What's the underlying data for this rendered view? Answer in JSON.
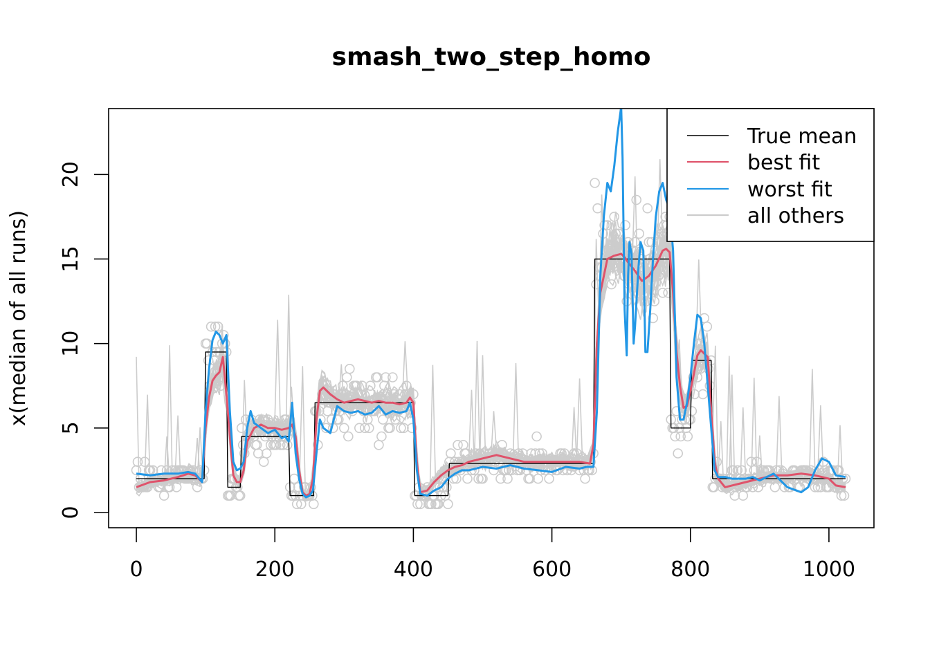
{
  "chart_data": {
    "type": "line",
    "title": "smash_two_step_homo",
    "xlabel": "",
    "ylabel": "x(median of all runs)",
    "xlim": [
      -40,
      1065
    ],
    "ylim": [
      -0.9,
      23.9
    ],
    "x_ticks": [
      0,
      200,
      400,
      600,
      800,
      1000
    ],
    "x_tick_labels": [
      "0",
      "200",
      "400",
      "600",
      "800",
      "1000"
    ],
    "y_ticks": [
      0,
      5,
      10,
      15,
      20
    ],
    "y_tick_labels": [
      "0",
      "5",
      "10",
      "15",
      "20"
    ],
    "legend_position": "top-right",
    "colors": {
      "true_mean": "#000000",
      "best_fit": "#DF536B",
      "worst_fit": "#2297E6",
      "all_others": "#CCCCCC",
      "points": "#CCCCCC"
    },
    "series": [
      {
        "name": "True mean",
        "key": "true_mean",
        "x": [
          0,
          98,
          100,
          130,
          132,
          150,
          152,
          220,
          222,
          232,
          234,
          256,
          258,
          400,
          402,
          450,
          452,
          660,
          662,
          770,
          772,
          800,
          802,
          830,
          832,
          1024
        ],
        "y": [
          2,
          2,
          9.5,
          9.5,
          1.5,
          1.5,
          4.5,
          4.5,
          1,
          1,
          1,
          1,
          6.5,
          6.5,
          1,
          1,
          2.9,
          2.9,
          15,
          15,
          5,
          5,
          9,
          9,
          2,
          2
        ]
      },
      {
        "name": "best fit",
        "key": "best_fit",
        "x": [
          0,
          20,
          40,
          60,
          75,
          85,
          95,
          100,
          105,
          110,
          115,
          120,
          125,
          130,
          135,
          140,
          145,
          150,
          155,
          160,
          170,
          180,
          190,
          200,
          210,
          220,
          225,
          230,
          235,
          240,
          245,
          250,
          255,
          260,
          265,
          270,
          280,
          290,
          300,
          310,
          320,
          330,
          340,
          350,
          360,
          370,
          380,
          390,
          395,
          400,
          405,
          410,
          420,
          430,
          440,
          450,
          460,
          470,
          480,
          500,
          520,
          540,
          560,
          580,
          600,
          620,
          640,
          655,
          660,
          665,
          670,
          680,
          690,
          700,
          705,
          710,
          720,
          730,
          740,
          750,
          760,
          765,
          770,
          775,
          780,
          785,
          790,
          795,
          800,
          805,
          810,
          815,
          820,
          825,
          830,
          835,
          840,
          850,
          860,
          870,
          880,
          900,
          920,
          940,
          960,
          980,
          1000,
          1010,
          1024
        ],
        "y": [
          1.5,
          1.8,
          1.9,
          2.1,
          2.3,
          2.2,
          1.8,
          5,
          6.8,
          7.8,
          8.1,
          8.3,
          9.2,
          7.0,
          4.5,
          2.2,
          1.8,
          1.8,
          2.5,
          4.2,
          5.0,
          5.2,
          5.0,
          5.0,
          4.9,
          5.0,
          5.2,
          4.5,
          2.5,
          1.2,
          1.0,
          1.1,
          2.0,
          5.5,
          7.2,
          7.4,
          7.0,
          6.7,
          6.5,
          6.6,
          6.7,
          6.6,
          6.5,
          6.6,
          6.5,
          6.5,
          6.4,
          6.5,
          6.8,
          6.5,
          3.0,
          1.2,
          1.3,
          1.8,
          2.2,
          2.5,
          2.7,
          2.8,
          3.0,
          3.2,
          3.4,
          3.2,
          3.0,
          3.0,
          3.0,
          3.0,
          3.0,
          2.9,
          4.0,
          10.0,
          13.0,
          15.0,
          15.2,
          15.3,
          15.1,
          14.8,
          14.3,
          13.7,
          14.0,
          14.6,
          15.5,
          15.6,
          15.4,
          13.0,
          9.5,
          7.5,
          6.2,
          6.3,
          7.2,
          8.2,
          9.3,
          9.6,
          9.4,
          9.2,
          6.0,
          3.0,
          2.0,
          1.5,
          1.6,
          1.7,
          1.8,
          2.0,
          2.2,
          2.2,
          2.3,
          2.2,
          2.0,
          1.6,
          1.5
        ]
      },
      {
        "name": "worst fit",
        "key": "worst_fit",
        "x": [
          0,
          20,
          40,
          60,
          75,
          85,
          95,
          100,
          105,
          110,
          115,
          120,
          125,
          130,
          135,
          140,
          145,
          150,
          155,
          160,
          165,
          170,
          180,
          190,
          200,
          210,
          215,
          220,
          225,
          230,
          235,
          240,
          245,
          250,
          255,
          260,
          265,
          270,
          280,
          290,
          300,
          310,
          320,
          330,
          340,
          350,
          360,
          370,
          380,
          390,
          395,
          400,
          405,
          410,
          420,
          430,
          440,
          450,
          460,
          470,
          480,
          500,
          520,
          540,
          560,
          580,
          600,
          620,
          640,
          650,
          660,
          665,
          670,
          675,
          680,
          685,
          690,
          695,
          700,
          702,
          705,
          708,
          710,
          712,
          715,
          718,
          720,
          725,
          728,
          732,
          735,
          738,
          742,
          746,
          750,
          755,
          760,
          765,
          770,
          775,
          780,
          785,
          790,
          795,
          800,
          805,
          810,
          815,
          820,
          825,
          830,
          835,
          840,
          850,
          860,
          870,
          880,
          890,
          900,
          920,
          940,
          960,
          970,
          980,
          990,
          1000,
          1010,
          1024
        ],
        "y": [
          2.3,
          2.2,
          2.3,
          2.3,
          2.4,
          2.3,
          1.8,
          6.0,
          8.5,
          10.2,
          10.7,
          10.5,
          10.0,
          10.5,
          6.0,
          3.0,
          2.5,
          2.6,
          3.0,
          5.0,
          6.0,
          5.3,
          5.0,
          4.7,
          4.9,
          4.4,
          4.5,
          4.2,
          6.5,
          3.5,
          2.0,
          1.1,
          0.9,
          1.0,
          1.3,
          3.5,
          5.5,
          5.0,
          4.7,
          6.3,
          6.0,
          5.9,
          6.0,
          5.8,
          5.9,
          6.3,
          5.8,
          6.0,
          5.9,
          6.0,
          6.5,
          5.5,
          2.5,
          1.1,
          1.0,
          1.3,
          1.5,
          2.0,
          2.3,
          2.5,
          2.5,
          2.7,
          2.6,
          2.8,
          2.6,
          2.5,
          2.4,
          2.7,
          2.6,
          2.7,
          2.7,
          6.0,
          14.0,
          17.5,
          19.5,
          19.0,
          20.5,
          22.5,
          24.0,
          21.0,
          12.0,
          9.3,
          14.0,
          16.0,
          15.3,
          10.0,
          11.0,
          14.5,
          16.0,
          15.5,
          9.5,
          9.5,
          12.0,
          15.0,
          17.5,
          19.0,
          19.5,
          18.5,
          18.0,
          15.5,
          8.0,
          5.5,
          5.5,
          6.5,
          8.0,
          10.0,
          11.7,
          11.5,
          10.0,
          7.5,
          5.0,
          2.5,
          2.1,
          2.1,
          2.0,
          2.0,
          2.0,
          2.1,
          1.9,
          2.3,
          1.5,
          1.2,
          1.5,
          2.5,
          3.2,
          3.0,
          2.2,
          2.1
        ]
      }
    ]
  }
}
